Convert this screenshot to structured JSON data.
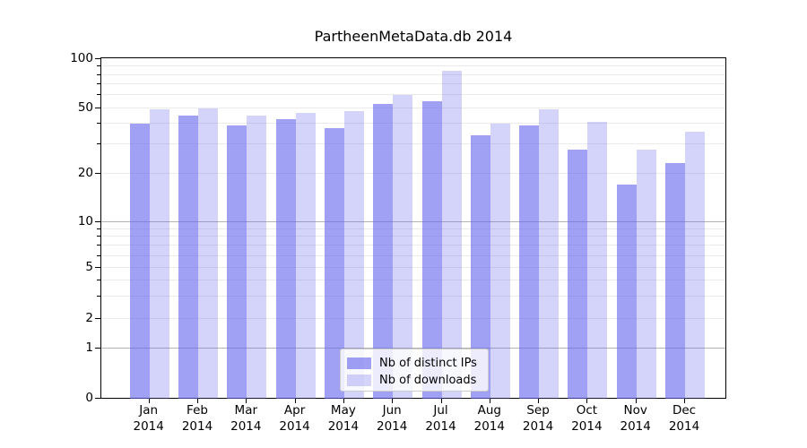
{
  "title": "PartheenMetaData.db 2014",
  "chart_data": {
    "type": "bar",
    "title": "PartheenMetaData.db 2014",
    "categories": [
      "Jan",
      "Feb",
      "Mar",
      "Apr",
      "May",
      "Jun",
      "Jul",
      "Aug",
      "Sep",
      "Oct",
      "Nov",
      "Dec"
    ],
    "category_year": "2014",
    "series": [
      {
        "name": "Nb of distinct IPs",
        "color": "rgba(102,102,238,0.62)",
        "values": [
          40,
          45,
          39,
          43,
          38,
          53,
          55,
          34,
          39,
          28,
          17,
          23
        ]
      },
      {
        "name": "Nb of downloads",
        "color": "rgba(102,102,238,0.28)",
        "values": [
          49,
          50,
          45,
          47,
          48,
          60,
          85,
          40,
          49,
          41,
          28,
          36
        ]
      }
    ],
    "y_axis": {
      "scale": "symlog",
      "ticks": [
        100,
        50,
        20,
        10,
        5,
        2,
        1,
        0
      ],
      "minor_ticks": [
        90,
        80,
        70,
        60,
        40,
        30,
        9,
        8,
        7,
        6,
        4,
        3
      ],
      "range": [
        0,
        100
      ]
    },
    "legend_position": "lower center",
    "grid": true,
    "accent_color": "#6666ee"
  }
}
